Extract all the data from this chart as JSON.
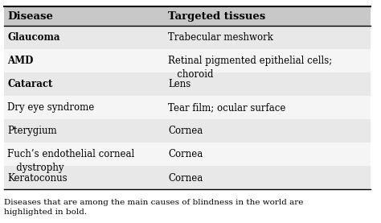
{
  "col1_header": "Disease",
  "col2_header": "Targeted tissues",
  "rows": [
    {
      "disease": "Glaucoma",
      "tissue": "Trabecular meshwork",
      "bold": true,
      "bg": "#e8e8e8"
    },
    {
      "disease": "AMD",
      "tissue": "Retinal pigmented epithelial cells;\n   choroid",
      "bold": true,
      "bg": "#f5f5f5"
    },
    {
      "disease": "Cataract",
      "tissue": "Lens",
      "bold": true,
      "bg": "#e8e8e8"
    },
    {
      "disease": "Dry eye syndrome",
      "tissue": "Tear film; ocular surface",
      "bold": false,
      "bg": "#f5f5f5"
    },
    {
      "disease": "Pterygium",
      "tissue": "Cornea",
      "bold": false,
      "bg": "#e8e8e8"
    },
    {
      "disease": "Fuch’s endothelial corneal\n   dystrophy",
      "tissue": "Cornea",
      "bold": false,
      "bg": "#f5f5f5"
    },
    {
      "disease": "Keratoconus",
      "tissue": "Cornea",
      "bold": false,
      "bg": "#e8e8e8"
    }
  ],
  "footer": "Diseases that are among the main causes of blindness in the world are\nhighlighted in bold.",
  "header_bg": "#c8c8c8",
  "col_split": 0.44,
  "font_size": 8.5,
  "header_font_size": 9.5
}
